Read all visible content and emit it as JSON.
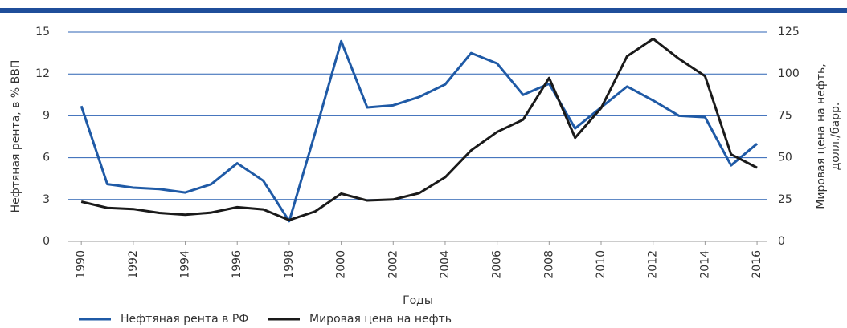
{
  "chart_data": {
    "type": "line",
    "x_label": "Годы",
    "y_label": "Нефтяная рента, в % ВВП",
    "y2_label": [
      "Мировая цена на нефть,",
      "долл./барр."
    ],
    "x": [
      1990,
      1991,
      1992,
      1993,
      1994,
      1995,
      1996,
      1997,
      1998,
      1999,
      2000,
      2001,
      2002,
      2003,
      2004,
      2005,
      2006,
      2007,
      2008,
      2009,
      2010,
      2011,
      2012,
      2013,
      2014,
      2015,
      2016
    ],
    "xlim": [
      1989.5,
      2016.4
    ],
    "xticks": [
      1990,
      1992,
      1994,
      1996,
      1998,
      2000,
      2002,
      2004,
      2006,
      2008,
      2010,
      2012,
      2014,
      2016
    ],
    "ylim": [
      0,
      15
    ],
    "yticks": [
      0,
      3,
      6,
      9,
      12,
      15
    ],
    "y2lim": [
      0,
      125
    ],
    "y2ticks": [
      0,
      25,
      50,
      75,
      100,
      125
    ],
    "grid": true,
    "legend": "bottom",
    "series": [
      {
        "name": "Нефтяная рента в РФ",
        "color": "#1f5aa6",
        "values": [
          9.7,
          4.1,
          3.85,
          3.75,
          3.5,
          4.1,
          5.6,
          4.35,
          1.45,
          7.8,
          14.35,
          9.6,
          9.75,
          10.35,
          11.25,
          13.5,
          12.75,
          10.5,
          11.3,
          8.1,
          9.6,
          11.1,
          10.1,
          9.0,
          8.9,
          5.45,
          7.0
        ]
      },
      {
        "name": "Мировая цена на нефть",
        "color": "#1a1a1a",
        "axis": "y2",
        "values": [
          23.7,
          20,
          19.3,
          17,
          15.9,
          17.2,
          20.4,
          19.1,
          12.7,
          17.9,
          28.5,
          24.4,
          25,
          28.8,
          38.3,
          54.4,
          65.4,
          72.7,
          97.6,
          61.9,
          79.6,
          110.6,
          121,
          109,
          98.7,
          52,
          44
        ]
      }
    ]
  }
}
